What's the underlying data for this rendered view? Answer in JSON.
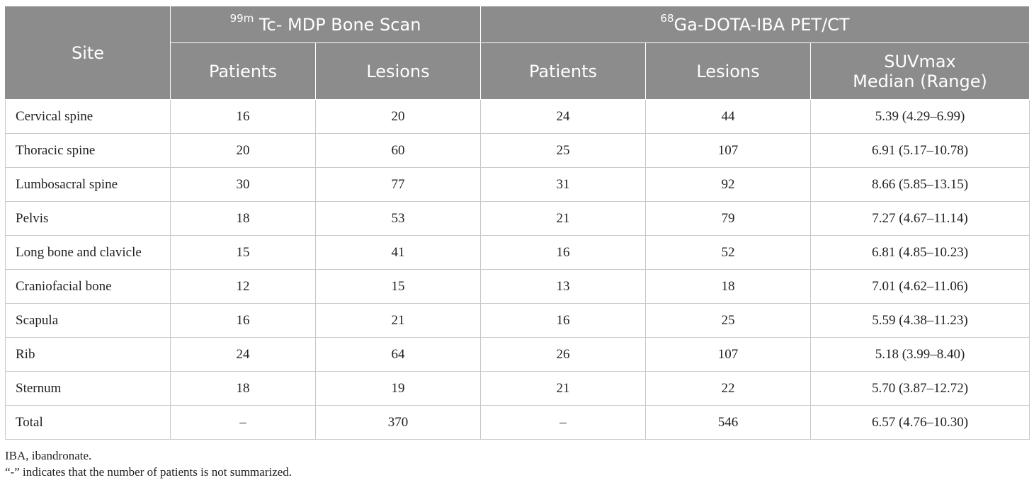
{
  "table": {
    "header": {
      "site": "Site",
      "group1_sup": "99m",
      "group1_text": " Tc- MDP Bone Scan",
      "group2_sup": "68",
      "group2_text": "Ga-DOTA-IBA PET/CT",
      "patients": "Patients",
      "lesions": "Lesions",
      "suv_line1": "SUVmax",
      "suv_line2": "Median (Range)"
    },
    "rows": [
      {
        "site": "Cervical spine",
        "bs_patients": "16",
        "bs_lesions": "20",
        "pet_patients": "24",
        "pet_lesions": "44",
        "suv": "5.39 (4.29–6.99)"
      },
      {
        "site": "Thoracic spine",
        "bs_patients": "20",
        "bs_lesions": "60",
        "pet_patients": "25",
        "pet_lesions": "107",
        "suv": "6.91 (5.17–10.78)"
      },
      {
        "site": "Lumbosacral spine",
        "bs_patients": "30",
        "bs_lesions": "77",
        "pet_patients": "31",
        "pet_lesions": "92",
        "suv": "8.66 (5.85–13.15)"
      },
      {
        "site": "Pelvis",
        "bs_patients": "18",
        "bs_lesions": "53",
        "pet_patients": "21",
        "pet_lesions": "79",
        "suv": "7.27 (4.67–11.14)"
      },
      {
        "site": "Long bone and clavicle",
        "bs_patients": "15",
        "bs_lesions": "41",
        "pet_patients": "16",
        "pet_lesions": "52",
        "suv": "6.81 (4.85–10.23)"
      },
      {
        "site": "Craniofacial bone",
        "bs_patients": "12",
        "bs_lesions": "15",
        "pet_patients": "13",
        "pet_lesions": "18",
        "suv": "7.01 (4.62–11.06)"
      },
      {
        "site": "Scapula",
        "bs_patients": "16",
        "bs_lesions": "21",
        "pet_patients": "16",
        "pet_lesions": "25",
        "suv": "5.59 (4.38–11.23)"
      },
      {
        "site": "Rib",
        "bs_patients": "24",
        "bs_lesions": "64",
        "pet_patients": "26",
        "pet_lesions": "107",
        "suv": "5.18 (3.99–8.40)"
      },
      {
        "site": "Sternum",
        "bs_patients": "18",
        "bs_lesions": "19",
        "pet_patients": "21",
        "pet_lesions": "22",
        "suv": "5.70 (3.87–12.72)"
      },
      {
        "site": "Total",
        "bs_patients": "–",
        "bs_lesions": "370",
        "pet_patients": "–",
        "pet_lesions": "546",
        "suv": "6.57 (4.76–10.30)"
      }
    ]
  },
  "footnotes": {
    "abbrev": "IBA, ibandronate.",
    "dash_note": "“-” indicates that the number of patients is not summarized."
  },
  "colors": {
    "header_bg": "#8c8c8c",
    "header_text": "#ffffff",
    "grid_line": "#c8c8c8"
  }
}
